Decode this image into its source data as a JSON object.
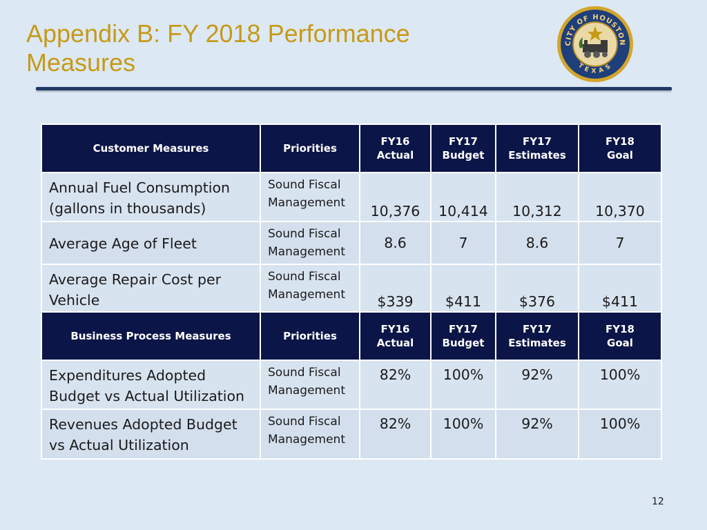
{
  "title": "Appendix B: FY 2018 Performance Measures",
  "seal": {
    "text_top": "CITY OF HOUSTON",
    "text_bottom": "TEXAS",
    "icon": "city-seal-icon"
  },
  "section_customer": {
    "col_measure": "Customer Measures",
    "col_priorities": "Priorities",
    "cols": [
      {
        "line1": "FY16",
        "line2": "Actual"
      },
      {
        "line1": "FY17",
        "line2": "Budget"
      },
      {
        "line1": "FY17",
        "line2": "Estimates"
      },
      {
        "line1": "FY18",
        "line2": "Goal"
      }
    ],
    "rows": [
      {
        "measure": "Annual Fuel Consumption (gallons in thousands)",
        "priority": "Sound Fiscal Management",
        "values": [
          "10,376",
          "10,414",
          "10,312",
          "10,370"
        ]
      },
      {
        "measure": "Average Age of Fleet",
        "priority": "Sound Fiscal Management",
        "values": [
          "8.6",
          "7",
          "8.6",
          "7"
        ]
      },
      {
        "measure": "Average Repair Cost per Vehicle",
        "priority": "Sound Fiscal Management",
        "values": [
          "$339",
          "$411",
          "$376",
          "$411"
        ]
      }
    ]
  },
  "section_business": {
    "col_measure": "Business Process Measures",
    "col_priorities": "Priorities",
    "cols": [
      {
        "line1": "FY16",
        "line2": "Actual"
      },
      {
        "line1": "FY17",
        "line2": "Budget"
      },
      {
        "line1": "FY17",
        "line2": "Estimates"
      },
      {
        "line1": "FY18",
        "line2": "Goal"
      }
    ],
    "rows": [
      {
        "measure": "Expenditures Adopted Budget vs Actual Utilization",
        "priority": "Sound Fiscal Management",
        "values": [
          "82%",
          "100%",
          "92%",
          "100%"
        ]
      },
      {
        "measure": "Revenues Adopted Budget vs Actual Utilization",
        "priority": "Sound Fiscal Management",
        "values": [
          "82%",
          "100%",
          "92%",
          "100%"
        ]
      }
    ]
  },
  "page_number": "12",
  "colors": {
    "title": "#c79a16",
    "header_bg": "#0c1547",
    "slide_bg": "#dce8f4",
    "rule": "#1f3b66"
  }
}
